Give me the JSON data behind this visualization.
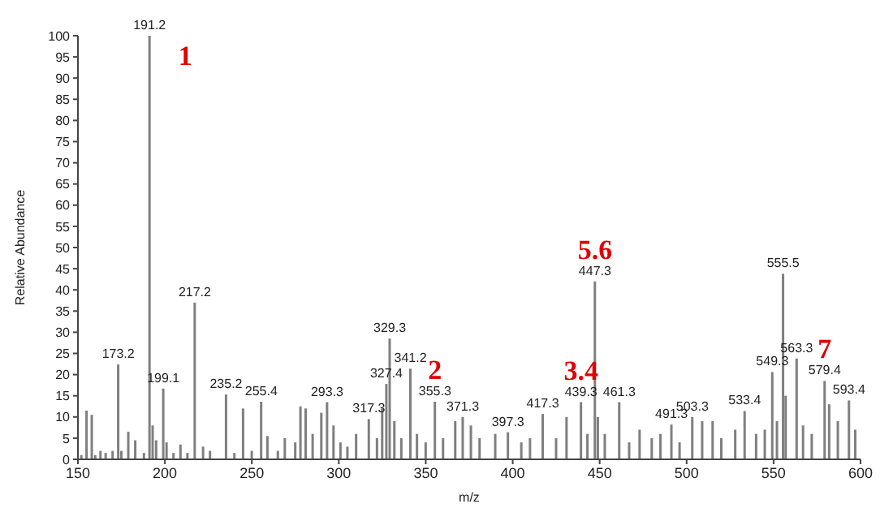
{
  "chart_data": {
    "type": "bar",
    "xlabel": "m/z",
    "ylabel": "Relative Abundance",
    "color": "#7f7f7f",
    "x": [
      152,
      155,
      158,
      160,
      163,
      166,
      170,
      173.2,
      175,
      179,
      183,
      188,
      191.2,
      193,
      195,
      199.1,
      201,
      205,
      209,
      213,
      217.2,
      222,
      226,
      235.2,
      240,
      245,
      250,
      255.4,
      259,
      265,
      269,
      275,
      278,
      281,
      285,
      290,
      293.3,
      297,
      301,
      305,
      310,
      317.3,
      322,
      325,
      327.4,
      329.3,
      332,
      336,
      341.2,
      345,
      350,
      355.3,
      360,
      367,
      371.3,
      376,
      381,
      390,
      397.3,
      405,
      410,
      417.3,
      425,
      431,
      439.3,
      443,
      447.3,
      449,
      453,
      461.3,
      467,
      473,
      480,
      485,
      491.3,
      496,
      503.3,
      509,
      515,
      520,
      528,
      533.4,
      540,
      545,
      549.3,
      552,
      555.5,
      557,
      563.3,
      567,
      572,
      579.4,
      582,
      587,
      593.4,
      597
    ],
    "values": [
      1,
      11.5,
      10.5,
      1,
      2,
      1.5,
      2,
      22.4,
      2,
      6.5,
      4.5,
      1.5,
      100,
      8,
      4.5,
      16.7,
      4,
      1.5,
      3.5,
      1.5,
      37,
      3,
      2,
      15.3,
      1.5,
      12,
      2,
      13.6,
      5.5,
      2,
      5,
      4,
      12.5,
      12,
      6,
      11,
      13.5,
      8,
      4,
      3,
      6,
      9.5,
      5,
      12,
      17.8,
      28.5,
      9,
      5,
      21.4,
      6,
      4,
      13.6,
      5,
      9,
      10,
      8,
      5,
      6,
      6.4,
      4,
      5,
      10.7,
      5,
      10,
      13.5,
      6,
      42,
      10,
      6,
      13.5,
      4,
      7,
      5,
      6,
      8.2,
      4,
      10,
      9,
      9,
      5,
      7,
      11.4,
      6,
      7,
      20.6,
      9,
      43.8,
      15,
      23.8,
      8,
      6,
      18.5,
      13,
      9,
      13.9,
      7
    ],
    "xlim": [
      150,
      600
    ],
    "xticks": [
      150,
      200,
      250,
      300,
      350,
      400,
      450,
      500,
      550,
      600
    ],
    "ylim": [
      0,
      100
    ],
    "yticks": [
      0,
      5,
      10,
      15,
      20,
      25,
      30,
      35,
      40,
      45,
      50,
      55,
      60,
      65,
      70,
      75,
      80,
      85,
      90,
      95,
      100
    ],
    "annotations": [
      {
        "text": "173.2",
        "x": 173.2,
        "y": 22.4
      },
      {
        "text": "191.2",
        "x": 191.2,
        "y": 100
      },
      {
        "text": "199.1",
        "x": 199.1,
        "y": 16.7
      },
      {
        "text": "217.2",
        "x": 217.2,
        "y": 37
      },
      {
        "text": "235.2",
        "x": 235.2,
        "y": 15.3
      },
      {
        "text": "255.4",
        "x": 255.4,
        "y": 13.6
      },
      {
        "text": "293.3",
        "x": 293.3,
        "y": 13.5
      },
      {
        "text": "317.3",
        "x": 317.3,
        "y": 9.5
      },
      {
        "text": "327.4",
        "x": 327.4,
        "y": 17.8
      },
      {
        "text": "329.3",
        "x": 329.3,
        "y": 28.5
      },
      {
        "text": "341.2",
        "x": 341.2,
        "y": 21.4
      },
      {
        "text": "355.3",
        "x": 355.3,
        "y": 13.6
      },
      {
        "text": "371.3",
        "x": 371.3,
        "y": 10
      },
      {
        "text": "397.3",
        "x": 397.3,
        "y": 6.4
      },
      {
        "text": "417.3",
        "x": 417.3,
        "y": 10.7
      },
      {
        "text": "439.3",
        "x": 439.3,
        "y": 13.5
      },
      {
        "text": "447.3",
        "x": 447.3,
        "y": 42
      },
      {
        "text": "461.3",
        "x": 461.3,
        "y": 13.5
      },
      {
        "text": "491.3",
        "x": 491.3,
        "y": 8.2
      },
      {
        "text": "503.3",
        "x": 503.3,
        "y": 10
      },
      {
        "text": "533.4",
        "x": 533.4,
        "y": 11.4
      },
      {
        "text": "549.3",
        "x": 549.3,
        "y": 20.6
      },
      {
        "text": "555.5",
        "x": 555.5,
        "y": 43.8
      },
      {
        "text": "563.3",
        "x": 563.3,
        "y": 23.8
      },
      {
        "text": "579.4",
        "x": 579.4,
        "y": 18.5
      },
      {
        "text": "593.4",
        "x": 593.4,
        "y": 13.9
      },
      {
        "text": "1",
        "x": 191.2,
        "y": 100
      },
      {
        "text": "2",
        "x": 355.3,
        "y": 13.6
      },
      {
        "text": "3.4",
        "x": 439.3,
        "y": 13.5
      },
      {
        "text": "5.6",
        "x": 447.3,
        "y": 42
      },
      {
        "text": "7",
        "x": 579.4,
        "y": 18.5
      }
    ]
  }
}
